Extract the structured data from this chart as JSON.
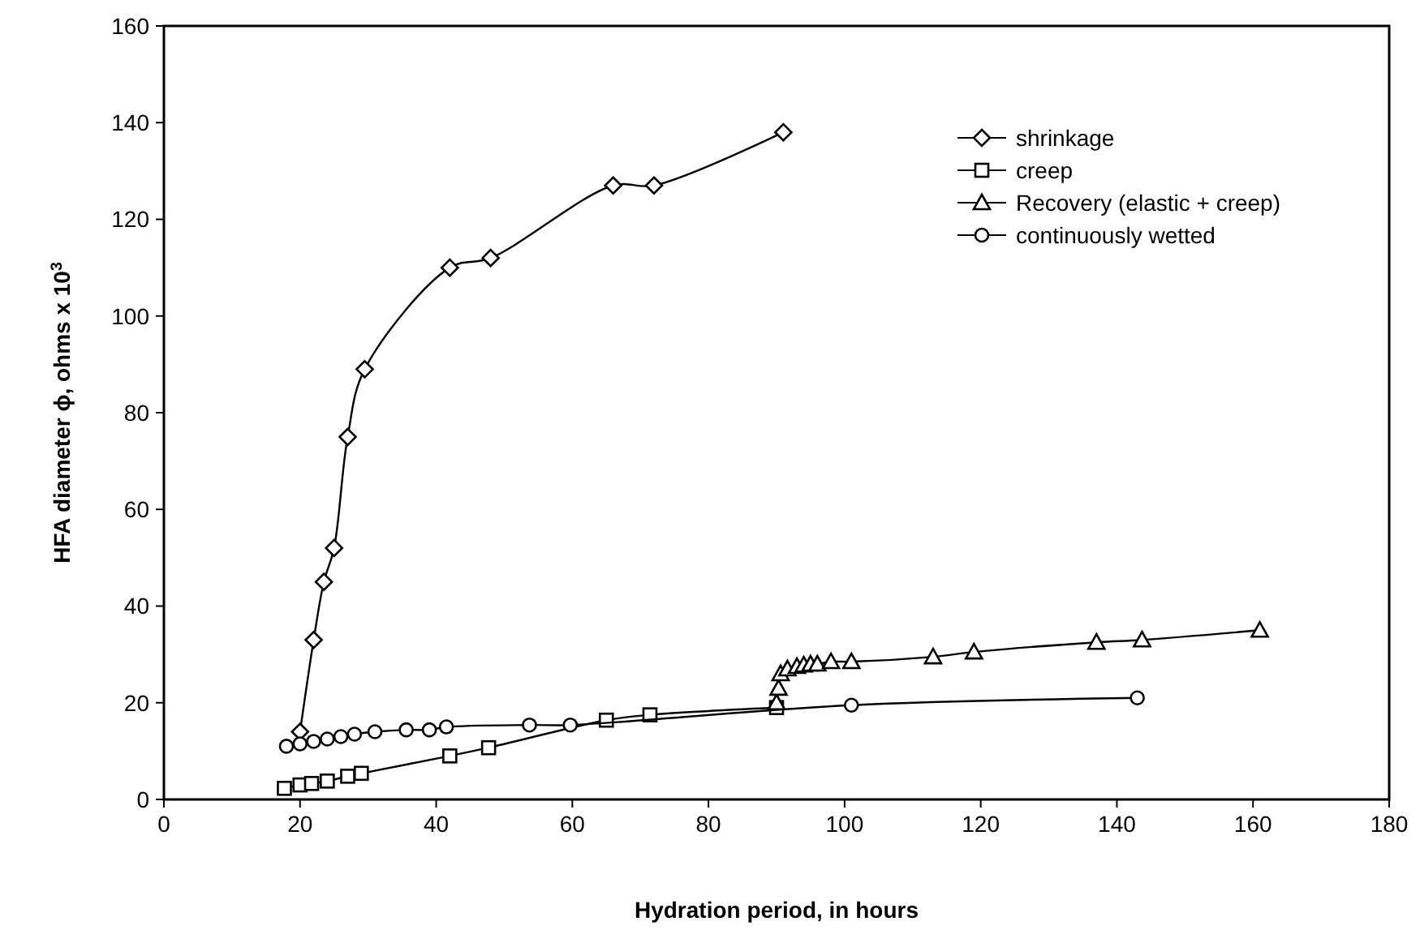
{
  "chart_data": {
    "type": "line",
    "xlabel": "Hydration period, in hours",
    "ylabel": "HFA diameter ϕ, ohms x 10$^{3}$",
    "xlim": [
      0,
      180
    ],
    "ylim": [
      0,
      160
    ],
    "xticks": [
      0,
      20,
      40,
      60,
      80,
      100,
      120,
      140,
      160,
      180
    ],
    "yticks": [
      0,
      20,
      40,
      60,
      80,
      100,
      120,
      140,
      160
    ],
    "grid": false,
    "legend": "top right",
    "line_style": "solid",
    "series": [
      {
        "name": "shrinkage",
        "color": "#000000",
        "marker": "diamond",
        "x": [
          20,
          22,
          23.5,
          25,
          27,
          29.5,
          42,
          48,
          66,
          72,
          91
        ],
        "values": [
          14,
          33,
          45,
          52,
          75,
          89,
          110,
          112,
          127,
          127,
          138
        ]
      },
      {
        "name": "creep",
        "color": "#000000",
        "marker": "square",
        "x": [
          17.7,
          20,
          21.7,
          24,
          27,
          29,
          42,
          47.7,
          65,
          71.4,
          90
        ],
        "values": [
          2.3,
          3,
          3.3,
          3.8,
          4.8,
          5.4,
          9,
          10.7,
          16.4,
          17.5,
          19
        ]
      },
      {
        "name": "Recovery (elastic + creep)",
        "color": "#000000",
        "marker": "triangle",
        "x": [
          90,
          90.3,
          90.6,
          91.6,
          93,
          94,
          95,
          96,
          98,
          101,
          113,
          119,
          137,
          143.7,
          161
        ],
        "values": [
          20,
          23,
          26,
          27,
          27.5,
          27.8,
          28,
          28,
          28.5,
          28.5,
          29.5,
          30.5,
          32.5,
          33,
          35
        ]
      },
      {
        "name": "continuously wetted",
        "color": "#000000",
        "marker": "circle",
        "x": [
          18,
          20,
          22,
          24,
          26,
          28,
          31,
          35.6,
          39,
          41.5,
          53.7,
          59.7,
          101,
          143
        ],
        "values": [
          11,
          11.5,
          12,
          12.5,
          13,
          13.5,
          14,
          14.4,
          14.4,
          15,
          15.4,
          15.4,
          19.5,
          21
        ]
      }
    ]
  }
}
